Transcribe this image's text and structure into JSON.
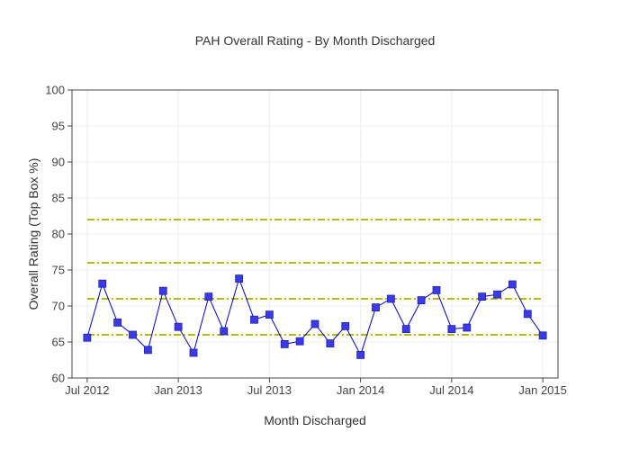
{
  "chart_data": {
    "type": "line",
    "title": "PAH Overall Rating - By Month Discharged",
    "xlabel": "Month Discharged",
    "ylabel": "Overall Rating (Top Box %)",
    "ylim": [
      60,
      100
    ],
    "y_ticks": [
      60,
      65,
      70,
      75,
      80,
      85,
      90,
      95,
      100
    ],
    "x_start": "2012-06",
    "x_end": "2015-02",
    "x_ticks": [
      {
        "month": "2012-07",
        "label": "Jul 2012"
      },
      {
        "month": "2013-01",
        "label": "Jan 2013"
      },
      {
        "month": "2013-07",
        "label": "Jul 2013"
      },
      {
        "month": "2014-01",
        "label": "Jan 2014"
      },
      {
        "month": "2014-07",
        "label": "Jul 2014"
      },
      {
        "month": "2015-01",
        "label": "Jan 2015"
      }
    ],
    "grid": true,
    "legend": "none",
    "series": [
      {
        "color": "#0000cc",
        "marker_color": "#3a3ae8",
        "x": [
          "2012-07",
          "2012-08",
          "2012-09",
          "2012-10",
          "2012-11",
          "2012-12",
          "2013-01",
          "2013-02",
          "2013-03",
          "2013-04",
          "2013-05",
          "2013-06",
          "2013-07",
          "2013-08",
          "2013-09",
          "2013-10",
          "2013-11",
          "2013-12",
          "2014-01",
          "2014-02",
          "2014-03",
          "2014-04",
          "2014-05",
          "2014-06",
          "2014-07",
          "2014-08",
          "2014-09",
          "2014-10",
          "2014-11",
          "2014-12",
          "2015-01"
        ],
        "values": [
          65.6,
          73.1,
          67.7,
          66.0,
          63.9,
          72.1,
          67.1,
          63.5,
          71.3,
          66.5,
          73.8,
          68.1,
          68.8,
          64.7,
          65.1,
          67.5,
          64.8,
          67.2,
          63.2,
          69.8,
          71.0,
          66.8,
          70.8,
          72.2,
          66.8,
          67.0,
          71.3,
          71.6,
          73.0,
          68.9,
          65.9
        ]
      }
    ],
    "reference_lines": [
      {
        "y": 82,
        "x_from": "2012-07",
        "x_to": "2015-01",
        "color": "#b8b800"
      },
      {
        "y": 76,
        "x_from": "2012-07",
        "x_to": "2015-01",
        "color": "#b8b800"
      },
      {
        "y": 71,
        "x_from": "2012-07",
        "x_to": "2015-01",
        "color": "#b8b800"
      },
      {
        "y": 66,
        "x_from": "2012-07",
        "x_to": "2015-01",
        "color": "#b8b800"
      }
    ]
  }
}
